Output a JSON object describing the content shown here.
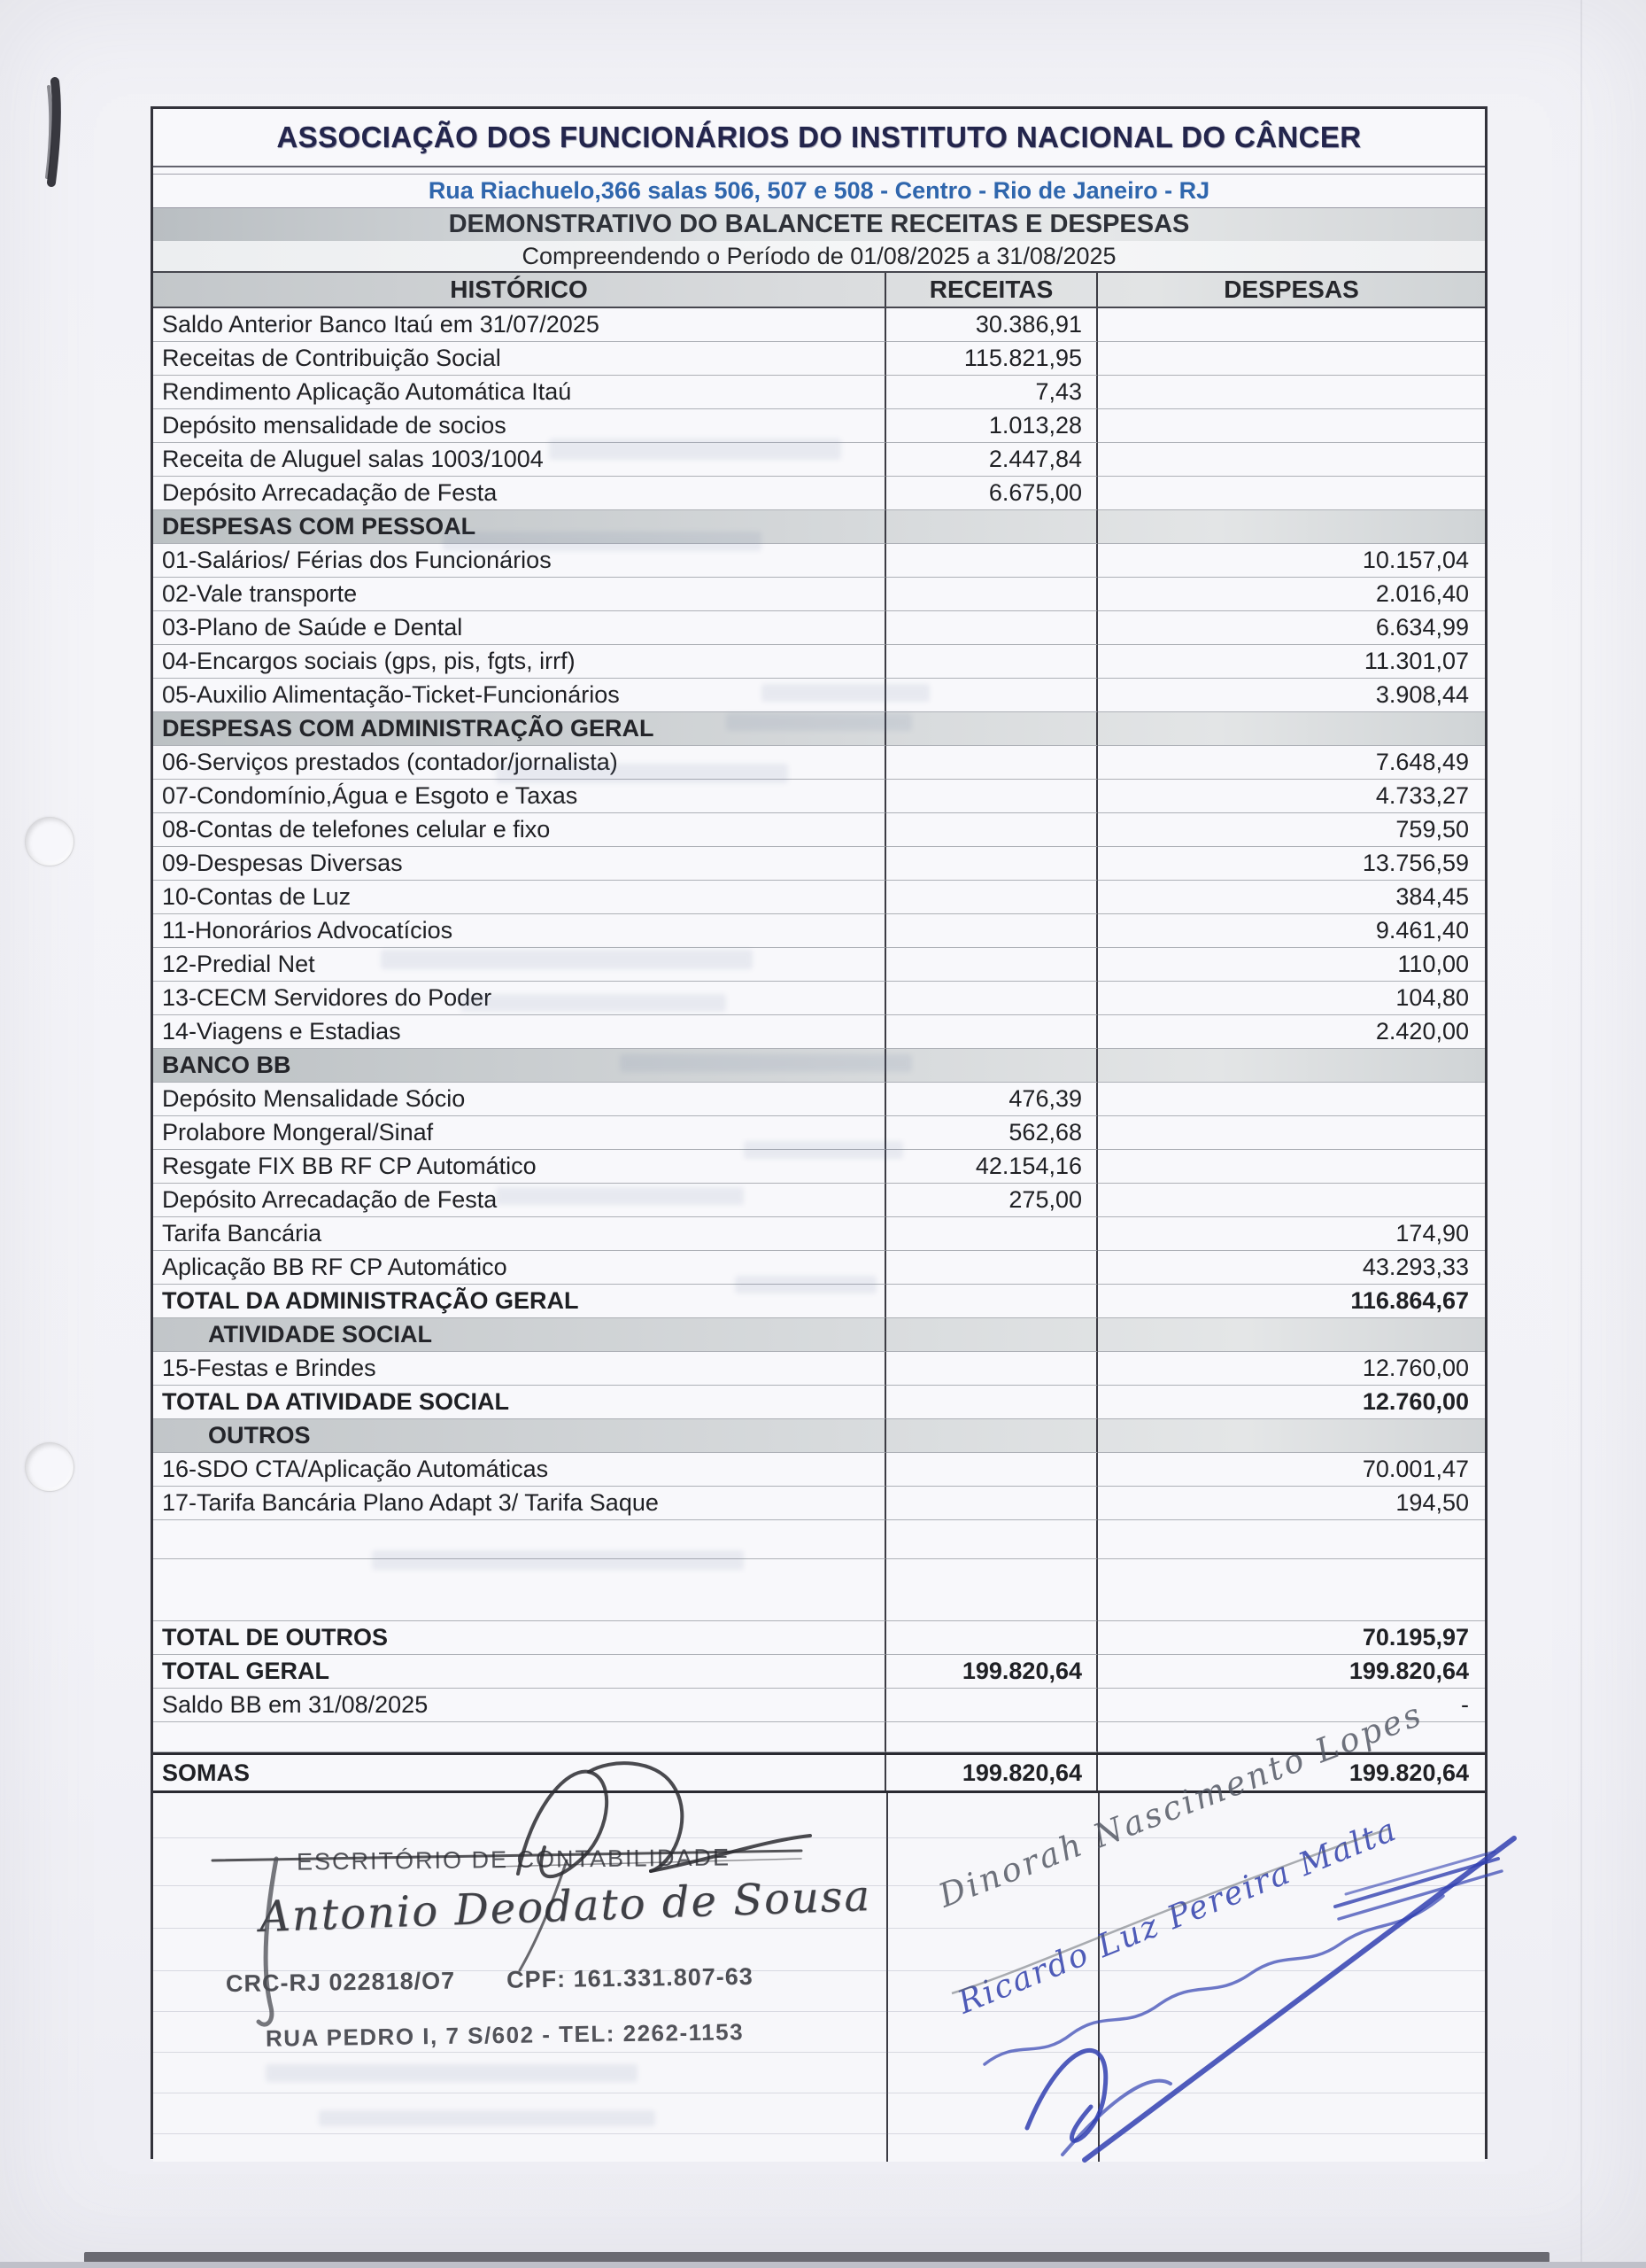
{
  "document": {
    "association_name": "ASSOCIAÇÃO DOS FUNCIONÁRIOS DO INSTITUTO NACIONAL DO CÂNCER",
    "address_line": "Rua Riachuelo,366 salas 506, 507 e 508 - Centro - Rio de Janeiro - RJ",
    "title": "DEMONSTRATIVO DO BALANCETE RECEITAS E DESPESAS",
    "period": "Compreendendo o Período de 01/08/2025 a 31/08/2025"
  },
  "table": {
    "columns": {
      "historico": "HISTÓRICO",
      "receitas": "RECEITAS",
      "despesas": "DESPESAS"
    },
    "rows": [
      {
        "type": "item",
        "label": "Saldo Anterior Banco Itaú em 31/07/2025",
        "receitas": "30.386,91",
        "despesas": ""
      },
      {
        "type": "item",
        "label": "Receitas de Contribuição Social",
        "receitas": "115.821,95",
        "despesas": ""
      },
      {
        "type": "item",
        "label": "Rendimento Aplicação Automática Itaú",
        "receitas": "7,43",
        "despesas": ""
      },
      {
        "type": "item",
        "label": "Depósito mensalidade de socios",
        "receitas": "1.013,28",
        "despesas": ""
      },
      {
        "type": "item",
        "label": "Receita de Aluguel salas 1003/1004",
        "receitas": "2.447,84",
        "despesas": ""
      },
      {
        "type": "item",
        "label": "Depósito Arrecadação de Festa",
        "receitas": "6.675,00",
        "despesas": ""
      },
      {
        "type": "section",
        "label": "DESPESAS COM PESSOAL",
        "receitas": "",
        "despesas": ""
      },
      {
        "type": "item",
        "label": "01-Salários/ Férias dos Funcionários",
        "receitas": "",
        "despesas": "10.157,04"
      },
      {
        "type": "item",
        "label": "02-Vale transporte",
        "receitas": "",
        "despesas": "2.016,40"
      },
      {
        "type": "item",
        "label": "03-Plano de Saúde e Dental",
        "receitas": "",
        "despesas": "6.634,99"
      },
      {
        "type": "item",
        "label": "04-Encargos sociais (gps, pis, fgts, irrf)",
        "receitas": "",
        "despesas": "11.301,07"
      },
      {
        "type": "item",
        "label": "05-Auxilio Alimentação-Ticket-Funcionários",
        "receitas": "",
        "despesas": "3.908,44"
      },
      {
        "type": "section",
        "label": "DESPESAS COM ADMINISTRAÇÃO GERAL",
        "receitas": "",
        "despesas": ""
      },
      {
        "type": "item",
        "label": "06-Serviços prestados (contador/jornalista)",
        "receitas": "",
        "despesas": "7.648,49"
      },
      {
        "type": "item",
        "label": "07-Condomínio,Água e Esgoto e Taxas",
        "receitas": "",
        "despesas": "4.733,27"
      },
      {
        "type": "item",
        "label": "08-Contas de telefones celular e fixo",
        "receitas": "",
        "despesas": "759,50"
      },
      {
        "type": "item",
        "label": "09-Despesas Diversas",
        "receitas": "",
        "despesas": "13.756,59"
      },
      {
        "type": "item",
        "label": "10-Contas de Luz",
        "receitas": "",
        "despesas": "384,45"
      },
      {
        "type": "item",
        "label": "11-Honorários Advocatícios",
        "receitas": "",
        "despesas": "9.461,40"
      },
      {
        "type": "item",
        "label": "12-Predial Net",
        "receitas": "",
        "despesas": "110,00"
      },
      {
        "type": "item",
        "label": "13-CECM Servidores do Poder",
        "receitas": "",
        "despesas": "104,80"
      },
      {
        "type": "item",
        "label": "14-Viagens e Estadias",
        "receitas": "",
        "despesas": "2.420,00"
      },
      {
        "type": "section",
        "label": "BANCO BB",
        "receitas": "",
        "despesas": ""
      },
      {
        "type": "item",
        "label": "Depósito Mensalidade Sócio",
        "receitas": "476,39",
        "despesas": ""
      },
      {
        "type": "item",
        "label": "Prolabore  Mongeral/Sinaf",
        "receitas": "562,68",
        "despesas": ""
      },
      {
        "type": "item",
        "label": "Resgate FIX BB RF CP Automático",
        "receitas": "42.154,16",
        "despesas": ""
      },
      {
        "type": "item",
        "label": "Depósito Arrecadação de Festa",
        "receitas": "275,00",
        "despesas": ""
      },
      {
        "type": "item",
        "label": "Tarifa Bancária",
        "receitas": "",
        "despesas": "174,90"
      },
      {
        "type": "item",
        "label": "Aplicação BB RF CP Automático",
        "receitas": "",
        "despesas": "43.293,33"
      },
      {
        "type": "total",
        "label": "TOTAL DA ADMINISTRAÇÃO GERAL",
        "receitas": "",
        "despesas": "116.864,67"
      },
      {
        "type": "section-indent",
        "label": "ATIVIDADE SOCIAL",
        "receitas": "",
        "despesas": ""
      },
      {
        "type": "item",
        "label": "15-Festas e Brindes",
        "receitas": "",
        "despesas": "12.760,00"
      },
      {
        "type": "total",
        "label": "TOTAL DA ATIVIDADE SOCIAL",
        "receitas": "",
        "despesas": "12.760,00"
      },
      {
        "type": "section-indent",
        "label": "OUTROS",
        "receitas": "",
        "despesas": ""
      },
      {
        "type": "item",
        "label": "16-SDO CTA/Aplicação Automáticas",
        "receitas": "",
        "despesas": "70.001,47"
      },
      {
        "type": "item",
        "label": "17-Tarifa Bancária Plano Adapt 3/ Tarifa Saque",
        "receitas": "",
        "despesas": "194,50"
      },
      {
        "type": "empty",
        "label": "",
        "receitas": "",
        "despesas": ""
      },
      {
        "type": "empty",
        "label": "",
        "receitas": "",
        "despesas": ""
      },
      {
        "type": "total",
        "label": "TOTAL DE OUTROS",
        "receitas": "",
        "despesas": "70.195,97"
      },
      {
        "type": "total",
        "label": "TOTAL GERAL",
        "receitas": "199.820,64",
        "despesas": "199.820,64"
      },
      {
        "type": "item",
        "label": "Saldo BB em 31/08/2025",
        "receitas": "",
        "despesas": "-"
      },
      {
        "type": "empty",
        "label": "",
        "receitas": "",
        "despesas": ""
      },
      {
        "type": "sum",
        "label": "SOMAS",
        "receitas": "199.820,64",
        "despesas": "199.820,64"
      }
    ]
  },
  "accountant_stamp": {
    "office": "ESCRITÓRIO DE CONTABILIDADE",
    "name": "Antonio Deodato de Sousa",
    "crc": "CRC-RJ 022818/O7",
    "cpf": "CPF: 161.331.807-63",
    "street": "RUA PEDRO I, 7 S/602  -  TEL: 2262-1153"
  },
  "handwritten": {
    "signature_gray": "Dinorah Nascimento Lopes",
    "signature_blue": "Ricardo Luz Pereira Malta"
  },
  "colors": {
    "address_blue": "#2f66ad",
    "title_navy": "#23254c",
    "band_gray": "#c6cacd",
    "ink_blue": "#3140b0",
    "ink_black": "#2b2b30"
  }
}
